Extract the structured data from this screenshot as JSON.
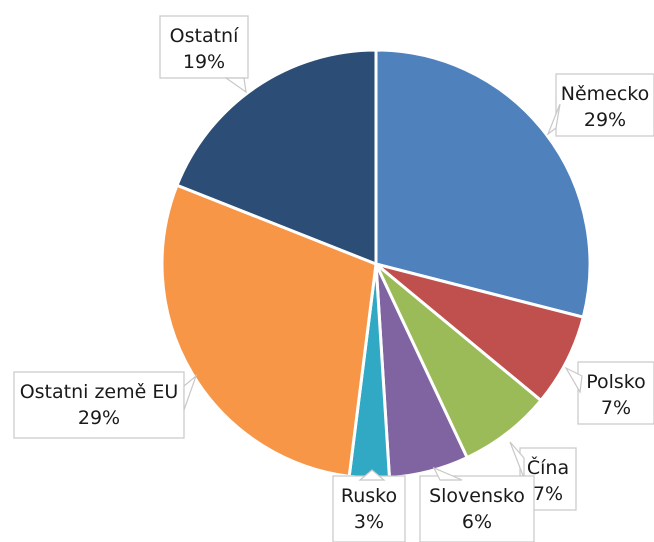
{
  "chart_data": {
    "type": "pie",
    "start_angle_deg": 0,
    "direction": "clockwise",
    "slices": [
      {
        "label": "Německo",
        "value": 29,
        "display": "29%",
        "color": "#4f81bd"
      },
      {
        "label": "Polsko",
        "value": 7,
        "display": "7%",
        "color": "#c0504d"
      },
      {
        "label": "Čína",
        "value": 7,
        "display": "7%",
        "color": "#9bbb59"
      },
      {
        "label": "Slovensko",
        "value": 6,
        "display": "6%",
        "color": "#8064a2"
      },
      {
        "label": "Rusko",
        "value": 3,
        "display": "3%",
        "color": "#31a9c5"
      },
      {
        "label": "Ostatni země EU",
        "value": 29,
        "display": "29%",
        "color": "#f79646"
      },
      {
        "label": "Ostatní",
        "value": 19,
        "display": "19%",
        "color": "#2c4d75"
      }
    ]
  }
}
